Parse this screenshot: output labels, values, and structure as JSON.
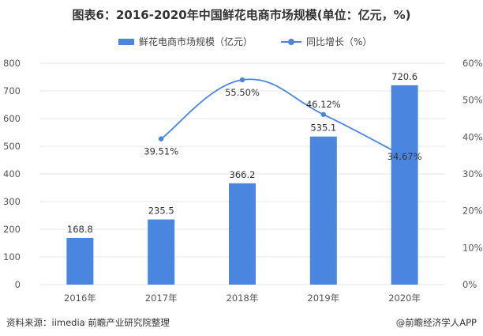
{
  "title": "图表6：2016-2020年中国鲜花电商市场规模(单位：亿元，%)",
  "legend": {
    "bar_label": "鲜花电商市场规模（亿元）",
    "line_label": "同比增长（%）"
  },
  "source": "资料来源：iimedia 前瞻产业研究院整理",
  "credit": "@前瞻经济学人APP",
  "colors": {
    "bar": "#4a86e0",
    "line": "#4a86e0",
    "grid": "#e6e6e6",
    "text": "#555555"
  },
  "chart_data": {
    "type": "bar",
    "categories": [
      "2016年",
      "2017年",
      "2018年",
      "2019年",
      "2020年"
    ],
    "series": [
      {
        "name": "鲜花电商市场规模（亿元）",
        "type": "bar",
        "axis": "left",
        "values": [
          168.8,
          235.5,
          366.2,
          535.1,
          720.6
        ],
        "labels": [
          "168.8",
          "235.5",
          "366.2",
          "535.1",
          "720.6"
        ]
      },
      {
        "name": "同比增长（%）",
        "type": "line",
        "axis": "right",
        "values": [
          null,
          39.51,
          55.5,
          46.12,
          34.67
        ],
        "labels": [
          "",
          "39.51%",
          "55.50%",
          "46.12%",
          "34.67%"
        ]
      }
    ],
    "y_left": {
      "min": 0,
      "max": 800,
      "ticks": [
        "0",
        "100",
        "200",
        "300",
        "400",
        "500",
        "600",
        "700",
        "800"
      ]
    },
    "y_right": {
      "min": 0,
      "max": 60,
      "ticks": [
        "0%",
        "10%",
        "20%",
        "30%",
        "40%",
        "50%",
        "60%"
      ]
    },
    "grid": true,
    "legend_position": "top-center"
  }
}
